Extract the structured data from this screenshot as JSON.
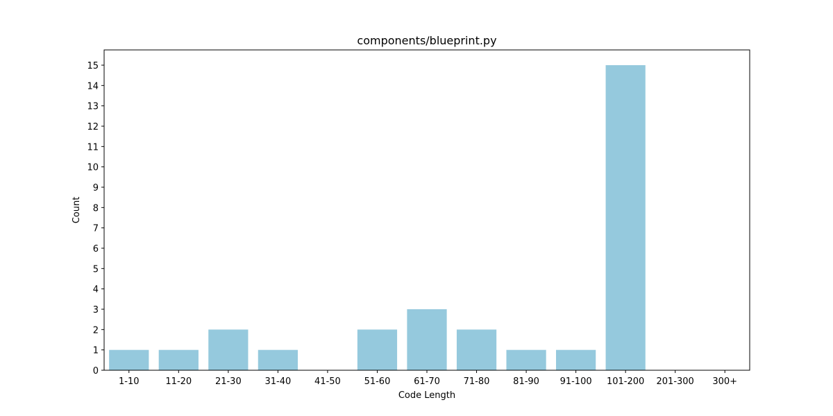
{
  "chart_data": {
    "type": "bar",
    "title": "components/blueprint.py",
    "xlabel": "Code Length",
    "ylabel": "Count",
    "categories": [
      "1-10",
      "11-20",
      "21-30",
      "31-40",
      "41-50",
      "51-60",
      "61-70",
      "71-80",
      "81-90",
      "91-100",
      "101-200",
      "201-300",
      "300+"
    ],
    "values": [
      1,
      1,
      2,
      1,
      0,
      2,
      3,
      2,
      1,
      1,
      15,
      0,
      0
    ],
    "ylim": [
      0,
      15.75
    ],
    "yticks": [
      "0",
      "1",
      "2",
      "3",
      "4",
      "5",
      "6",
      "7",
      "8",
      "9",
      "10",
      "11",
      "12",
      "13",
      "14",
      "15"
    ],
    "bar_color": "#95c9dd",
    "grid": false,
    "legend": "none"
  }
}
